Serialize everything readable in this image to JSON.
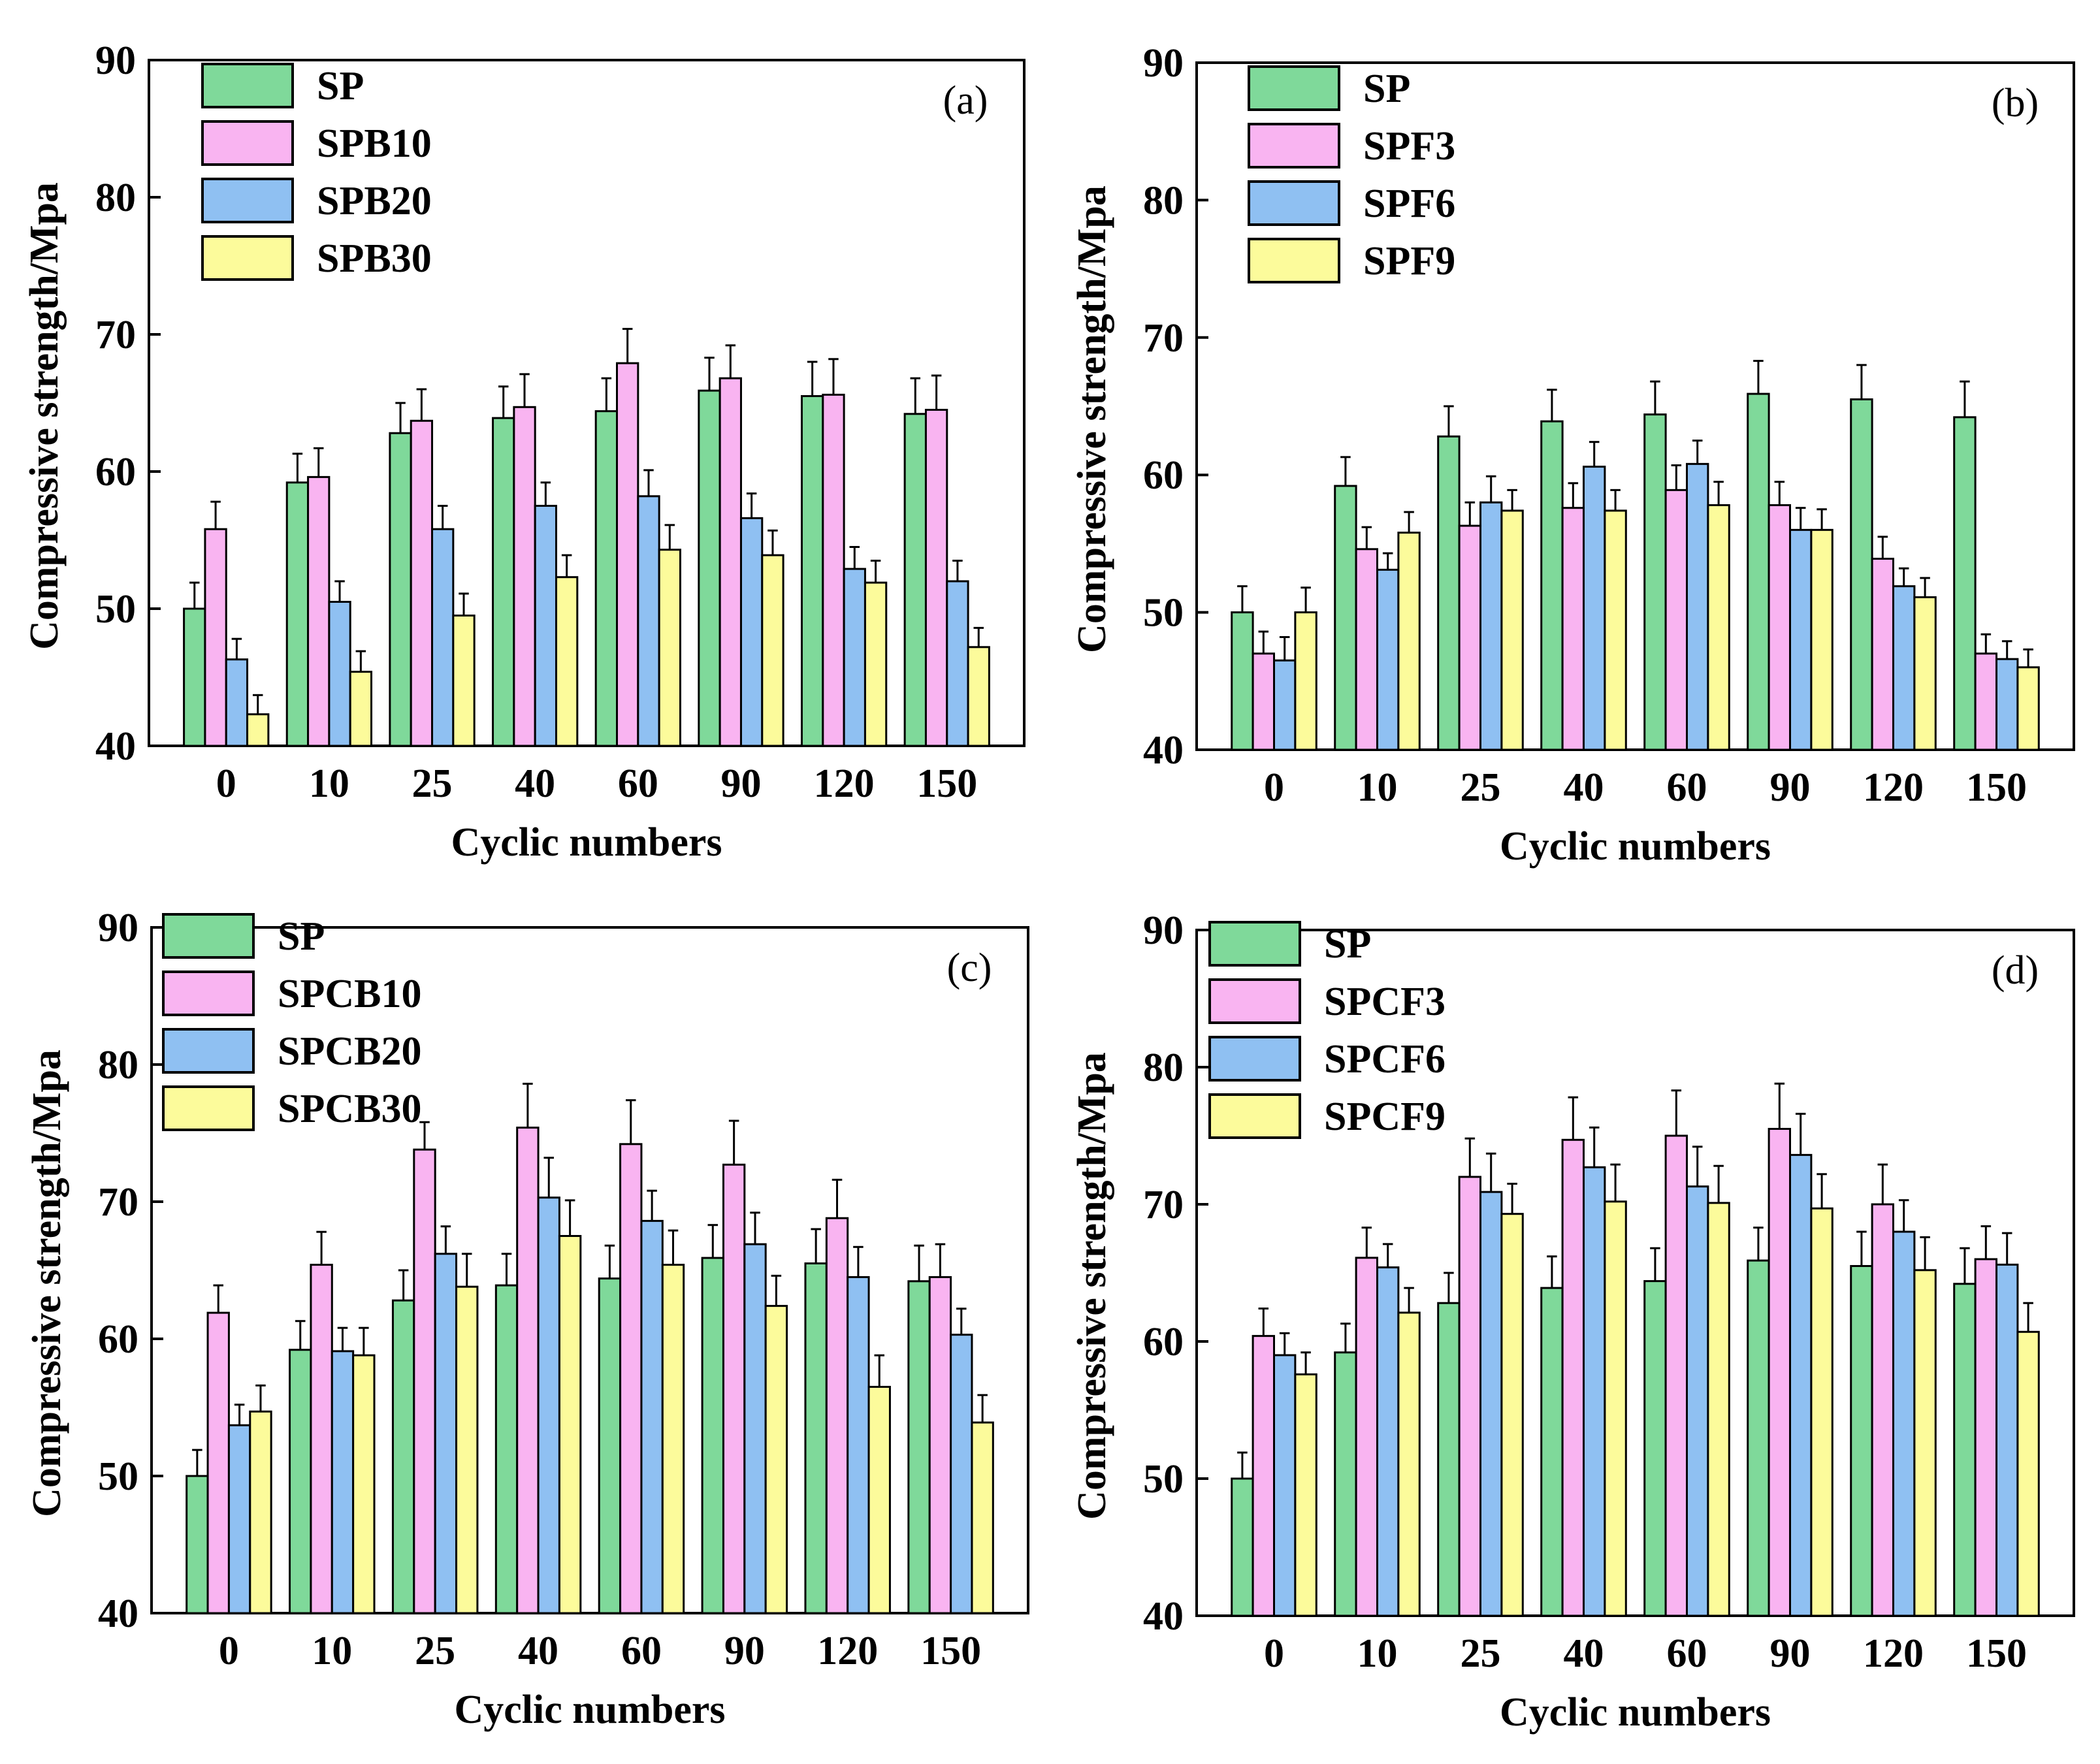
{
  "colors": {
    "series": [
      "#7fd99a",
      "#f9b4f1",
      "#8fc0f2",
      "#fcfb9b"
    ],
    "stroke": "#000000"
  },
  "chart_data": [
    {
      "type": "bar",
      "panel_label": "(a)",
      "xlabel": "Cyclic numbers",
      "ylabel": "Compressive strength/Mpa",
      "ylim": [
        40,
        90
      ],
      "yticks": [
        "40",
        "50",
        "60",
        "70",
        "80",
        "90"
      ],
      "categories": [
        "0",
        "10",
        "25",
        "40",
        "60",
        "90",
        "120",
        "150"
      ],
      "legend_position": "top-left",
      "series": [
        {
          "name": "SP",
          "values": [
            50.0,
            59.2,
            62.8,
            63.9,
            64.4,
            65.9,
            65.5,
            64.2
          ],
          "errors": [
            1.9,
            2.1,
            2.2,
            2.3,
            2.4,
            2.4,
            2.5,
            2.6
          ]
        },
        {
          "name": "SPB10",
          "values": [
            55.8,
            59.6,
            63.7,
            64.7,
            67.9,
            66.8,
            65.6,
            64.5
          ],
          "errors": [
            2.0,
            2.1,
            2.3,
            2.4,
            2.5,
            2.4,
            2.6,
            2.5
          ]
        },
        {
          "name": "SPB20",
          "values": [
            46.3,
            50.5,
            55.8,
            57.5,
            58.2,
            56.6,
            52.9,
            52.0
          ],
          "errors": [
            1.5,
            1.5,
            1.7,
            1.7,
            1.9,
            1.8,
            1.6,
            1.5
          ]
        },
        {
          "name": "SPB30",
          "values": [
            42.3,
            45.4,
            49.5,
            52.3,
            54.3,
            53.9,
            51.9,
            47.2
          ],
          "errors": [
            1.4,
            1.5,
            1.6,
            1.6,
            1.8,
            1.8,
            1.6,
            1.4
          ]
        }
      ]
    },
    {
      "type": "bar",
      "panel_label": "(b)",
      "xlabel": "Cyclic numbers",
      "ylabel": "Compressive strength/Mpa",
      "ylim": [
        40,
        90
      ],
      "yticks": [
        "40",
        "50",
        "60",
        "70",
        "80",
        "90"
      ],
      "categories": [
        "0",
        "10",
        "25",
        "40",
        "60",
        "90",
        "120",
        "150"
      ],
      "legend_position": "top-left",
      "series": [
        {
          "name": "SP",
          "values": [
            50.0,
            59.2,
            62.8,
            63.9,
            64.4,
            65.9,
            65.5,
            64.2
          ],
          "errors": [
            1.9,
            2.1,
            2.2,
            2.3,
            2.4,
            2.4,
            2.5,
            2.6
          ]
        },
        {
          "name": "SPF3",
          "values": [
            47.0,
            54.6,
            56.3,
            57.6,
            58.9,
            57.8,
            53.9,
            47.0
          ],
          "errors": [
            1.6,
            1.6,
            1.7,
            1.8,
            1.8,
            1.7,
            1.6,
            1.4
          ]
        },
        {
          "name": "SPF6",
          "values": [
            46.5,
            53.1,
            58.0,
            60.6,
            60.8,
            56.0,
            51.9,
            46.6
          ],
          "errors": [
            1.7,
            1.2,
            1.9,
            1.8,
            1.7,
            1.6,
            1.3,
            1.3
          ]
        },
        {
          "name": "SPF9",
          "values": [
            50.0,
            55.8,
            57.4,
            57.4,
            57.8,
            56.0,
            51.1,
            46.0
          ],
          "errors": [
            1.8,
            1.5,
            1.5,
            1.5,
            1.7,
            1.5,
            1.4,
            1.3
          ]
        }
      ]
    },
    {
      "type": "bar",
      "panel_label": "(c)",
      "xlabel": "Cyclic numbers",
      "ylabel": "Compressive strength/Mpa",
      "ylim": [
        40,
        90
      ],
      "yticks": [
        "40",
        "50",
        "60",
        "70",
        "80",
        "90"
      ],
      "categories": [
        "0",
        "10",
        "25",
        "40",
        "60",
        "90",
        "120",
        "150"
      ],
      "legend_position": "top-left",
      "series": [
        {
          "name": "SP",
          "values": [
            50.0,
            59.2,
            62.8,
            63.9,
            64.4,
            65.9,
            65.5,
            64.2
          ],
          "errors": [
            1.9,
            2.1,
            2.2,
            2.3,
            2.4,
            2.4,
            2.5,
            2.6
          ]
        },
        {
          "name": "SPCB10",
          "values": [
            61.9,
            65.4,
            73.8,
            75.4,
            74.2,
            72.7,
            68.8,
            64.5
          ],
          "errors": [
            2.0,
            2.4,
            2.0,
            3.2,
            3.2,
            3.2,
            2.8,
            2.4
          ]
        },
        {
          "name": "SPCB20",
          "values": [
            53.7,
            59.1,
            66.2,
            70.3,
            68.6,
            66.9,
            64.5,
            60.3
          ],
          "errors": [
            1.5,
            1.7,
            2.0,
            2.9,
            2.2,
            2.3,
            2.2,
            1.9
          ]
        },
        {
          "name": "SPCB30",
          "values": [
            54.7,
            58.8,
            63.8,
            67.5,
            65.4,
            62.4,
            56.5,
            53.9
          ],
          "errors": [
            1.9,
            2.0,
            2.4,
            2.6,
            2.5,
            2.2,
            2.3,
            2.0
          ]
        }
      ]
    },
    {
      "type": "bar",
      "panel_label": "(d)",
      "xlabel": "Cyclic numbers",
      "ylabel": "Compressive strength/Mpa",
      "ylim": [
        40,
        90
      ],
      "yticks": [
        "40",
        "50",
        "60",
        "70",
        "80",
        "90"
      ],
      "categories": [
        "0",
        "10",
        "25",
        "40",
        "60",
        "90",
        "120",
        "150"
      ],
      "legend_position": "top-left",
      "series": [
        {
          "name": "SP",
          "values": [
            50.0,
            59.2,
            62.8,
            63.9,
            64.4,
            65.9,
            65.5,
            64.2
          ],
          "errors": [
            1.9,
            2.1,
            2.2,
            2.3,
            2.4,
            2.4,
            2.5,
            2.6
          ]
        },
        {
          "name": "SPCF3",
          "values": [
            60.4,
            66.1,
            72.0,
            74.7,
            75.0,
            75.5,
            70.0,
            66.0
          ],
          "errors": [
            2.0,
            2.2,
            2.8,
            3.1,
            3.3,
            3.3,
            2.9,
            2.4
          ]
        },
        {
          "name": "SPCF6",
          "values": [
            59.0,
            65.4,
            70.9,
            72.7,
            71.3,
            73.6,
            68.0,
            65.6
          ],
          "errors": [
            1.6,
            1.7,
            2.8,
            2.9,
            2.9,
            3.0,
            2.3,
            2.3
          ]
        },
        {
          "name": "SPCF9",
          "values": [
            57.6,
            62.1,
            69.3,
            70.2,
            70.1,
            69.7,
            65.2,
            60.7
          ],
          "errors": [
            1.6,
            1.8,
            2.2,
            2.7,
            2.7,
            2.5,
            2.4,
            2.1
          ]
        }
      ]
    }
  ]
}
